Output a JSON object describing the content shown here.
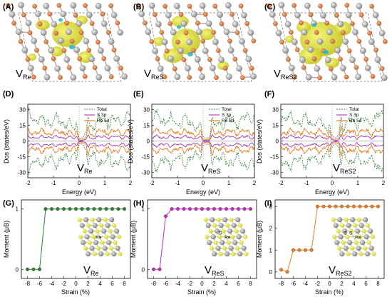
{
  "colors": {
    "total": "#2e7d32",
    "s3p": "#9c27b0",
    "re5d": "#ef6c00",
    "isosurface": "#dede2e",
    "isosurface_dark": "#b8b81e",
    "isosurface_neg": "#2fb5c9",
    "re_atom": "#a5a5a5",
    "s_atom": "#d9793d",
    "moment_a": "#2e7d32",
    "moment_b": "#c02ab8",
    "moment_c": "#ef7c1e",
    "inset_s": "#e6e63a",
    "inset_re": "#9e9e9e"
  },
  "panel_labels": [
    "(A)",
    "(B)",
    "(C)",
    "(D)",
    "(E)",
    "(F)",
    "(G)",
    "(H)",
    "(I)"
  ],
  "vacancy": {
    "a": {
      "main": "V",
      "sub": "Re"
    },
    "b": {
      "main": "V",
      "sub": "ReS"
    },
    "c": {
      "main": "V",
      "sub": "ReS2"
    }
  },
  "inset_labels": {
    "g": [
      "Re"
    ],
    "h": [
      "S",
      "Re"
    ],
    "i": [
      "S",
      "S",
      "Re"
    ]
  },
  "dos": {
    "ylabel": "Dos (states/eV)",
    "xlabel": "Energy (eV)",
    "x_ticks": [
      "-2",
      "-1",
      "0",
      "1",
      "2"
    ],
    "y_ticks": [
      "30",
      "15",
      "0",
      "-15",
      "-30"
    ],
    "legend": [
      "Total",
      "S 3p",
      "Re 5d"
    ]
  },
  "moment": {
    "ylabel": "Moment (μB)",
    "xlabel": "Strain (%)",
    "x_ticks": [
      "-8",
      "-6",
      "-4",
      "-2",
      "0",
      "2",
      "4",
      "6",
      "8"
    ],
    "y_ticks_ab": [
      "1",
      "0"
    ],
    "y_ticks_c": [
      "3",
      "2",
      "1",
      "0"
    ]
  },
  "chart_data": [
    {
      "panel": "D",
      "type": "line",
      "xlabel": "Energy (eV)",
      "ylabel": "Dos (states/eV)",
      "xlim": [
        -2,
        2
      ],
      "ylim": [
        -35,
        35
      ],
      "fermi_level": 0,
      "series": [
        {
          "name": "Total"
        },
        {
          "name": "S 3p"
        },
        {
          "name": "Re 5d"
        }
      ]
    },
    {
      "panel": "E",
      "type": "line",
      "xlabel": "Energy (eV)",
      "ylabel": "Dos (states/eV)",
      "xlim": [
        -2,
        2
      ],
      "ylim": [
        -35,
        35
      ],
      "fermi_level": 0,
      "series": [
        {
          "name": "Total"
        },
        {
          "name": "S 3p"
        },
        {
          "name": "Re 5d"
        }
      ]
    },
    {
      "panel": "F",
      "type": "line",
      "xlabel": "Energy (eV)",
      "ylabel": "Dos (states/eV)",
      "xlim": [
        -2,
        2
      ],
      "ylim": [
        -35,
        35
      ],
      "fermi_level": 0,
      "series": [
        {
          "name": "Total"
        },
        {
          "name": "S 3p"
        },
        {
          "name": "Re 5d"
        }
      ]
    },
    {
      "panel": "G",
      "type": "line",
      "xlabel": "Strain (%)",
      "ylabel": "Moment (μB)",
      "xlim": [
        -9,
        9
      ],
      "ylim": [
        -0.15,
        1.15
      ],
      "x": [
        -8,
        -7,
        -6,
        -5,
        -4,
        -3,
        -2,
        -1,
        0,
        1,
        2,
        3,
        4,
        5,
        6,
        7,
        8
      ],
      "y": [
        0,
        0,
        0,
        1,
        1,
        1,
        1,
        1,
        1,
        1,
        1,
        1,
        1,
        1,
        1,
        1,
        1
      ]
    },
    {
      "panel": "H",
      "type": "line",
      "xlabel": "Strain (%)",
      "ylabel": "Moment (μB)",
      "xlim": [
        -9,
        9
      ],
      "ylim": [
        -0.15,
        1.15
      ],
      "x": [
        -8,
        -7,
        -6,
        -5,
        -4,
        -3,
        -2,
        -1,
        0,
        1,
        2,
        3,
        4,
        5,
        6,
        7,
        8
      ],
      "y": [
        0,
        0,
        0.88,
        1,
        1,
        1,
        1,
        1,
        1,
        1,
        1,
        1,
        1,
        1,
        1,
        1,
        1
      ]
    },
    {
      "panel": "I",
      "type": "line",
      "xlabel": "Strain (%)",
      "ylabel": "Moment (μB)",
      "xlim": [
        -9,
        9
      ],
      "ylim": [
        -0.3,
        3.3
      ],
      "x": [
        -8,
        -7,
        -6,
        -5,
        -4,
        -3,
        -2,
        -1,
        0,
        1,
        2,
        3,
        4,
        5,
        6,
        7,
        8
      ],
      "y": [
        0.1,
        0,
        1,
        1,
        1,
        1,
        3,
        3,
        3,
        3,
        3,
        3,
        3,
        3,
        3,
        3,
        3
      ]
    }
  ]
}
